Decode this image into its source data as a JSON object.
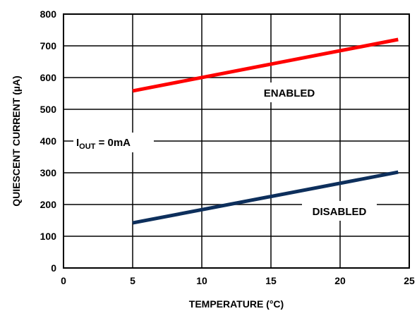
{
  "chart_data": {
    "type": "line",
    "xlabel": "TEMPERATURE (°C)",
    "ylabel": "QUIESCENT CURRENT (µA)",
    "xlim": [
      0,
      25
    ],
    "ylim": [
      0,
      800
    ],
    "xticks": [
      "0",
      "5",
      "10",
      "15",
      "20",
      "25"
    ],
    "yticks": [
      "0",
      "100",
      "200",
      "300",
      "400",
      "500",
      "600",
      "700",
      "800"
    ],
    "grid": true,
    "series": [
      {
        "name": "ENABLED",
        "color": "#ff0000",
        "x": [
          5,
          24.2
        ],
        "y": [
          558,
          720
        ]
      },
      {
        "name": "DISABLED",
        "color": "#0d2f5c",
        "x": [
          5,
          24.2
        ],
        "y": [
          142,
          302
        ]
      }
    ],
    "annotations": {
      "condition_main": "I",
      "condition_sub": "OUT",
      "condition_rest": " = 0mA"
    }
  }
}
